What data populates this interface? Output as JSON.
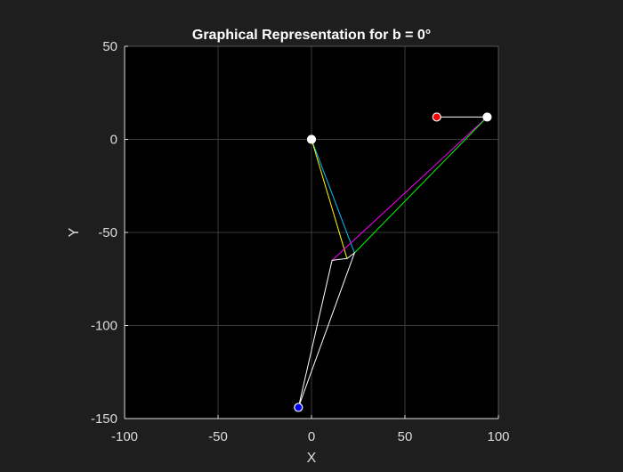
{
  "chart_data": {
    "type": "line",
    "title": "Graphical Representation for b = 0°",
    "xlabel": "X",
    "ylabel": "Y",
    "xlim": [
      -100,
      100
    ],
    "ylim": [
      -150,
      50
    ],
    "xticks": [
      -100,
      -50,
      0,
      50,
      100
    ],
    "yticks": [
      -150,
      -100,
      -50,
      0,
      50
    ],
    "grid": true,
    "colors": {
      "figure_background": "#1e1e1e",
      "axes_background": "#000000",
      "axis_text": "#dddddd",
      "grid": "#3a3a3a"
    },
    "series": [
      {
        "color": "#00bfff",
        "x": [
          0,
          23
        ],
        "y": [
          0,
          -61
        ]
      },
      {
        "color": "#ffff00",
        "x": [
          0,
          19
        ],
        "y": [
          0,
          -64
        ]
      },
      {
        "color": "#ff00ff",
        "x": [
          11,
          94
        ],
        "y": [
          -65,
          12
        ]
      },
      {
        "color": "#00ff00",
        "x": [
          23,
          94
        ],
        "y": [
          -61,
          12
        ]
      },
      {
        "color": "#ffffff",
        "x": [
          -7,
          11,
          19,
          23,
          -7
        ],
        "y": [
          -144,
          -65,
          -64,
          -61,
          -144
        ]
      },
      {
        "color": "#ffffff",
        "x": [
          67,
          94
        ],
        "y": [
          12,
          12
        ]
      }
    ],
    "points": [
      {
        "x": 0,
        "y": 0,
        "fill": "#ffffff",
        "stroke": "#ffffff"
      },
      {
        "x": 94,
        "y": 12,
        "fill": "#ffffff",
        "stroke": "#ffffff"
      },
      {
        "x": 67,
        "y": 12,
        "fill": "#ff0000",
        "stroke": "#ffffff"
      },
      {
        "x": -7,
        "y": -144,
        "fill": "#0000ff",
        "stroke": "#ffffff"
      }
    ]
  }
}
